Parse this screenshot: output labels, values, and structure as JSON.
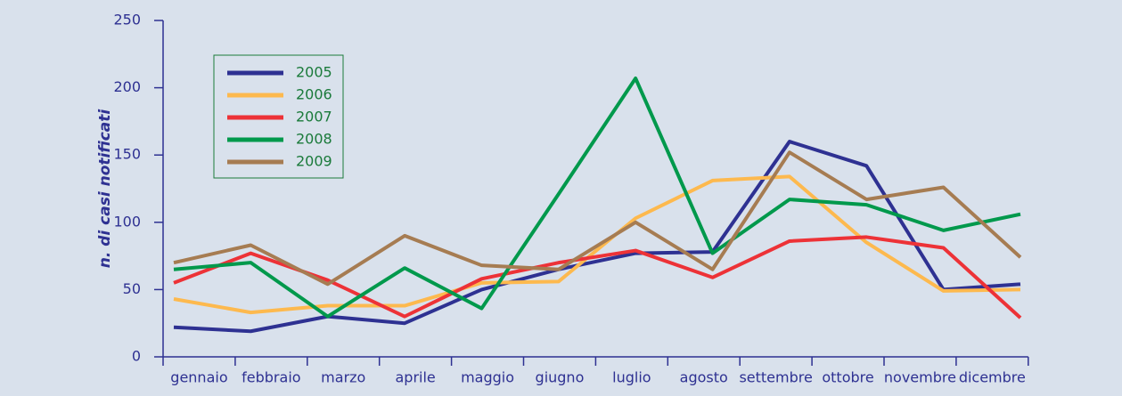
{
  "chart_data": {
    "type": "line",
    "y_label": "n. di casi notificati",
    "categories": [
      "gennaio",
      "febbraio",
      "marzo",
      "aprile",
      "maggio",
      "giugno",
      "luglio",
      "agosto",
      "settembre",
      "ottobre",
      "novembre",
      "dicembre"
    ],
    "series": [
      {
        "name": "2005",
        "color": "#2e3192",
        "values": [
          22,
          19,
          30,
          25,
          50,
          65,
          77,
          78,
          160,
          142,
          50,
          54
        ]
      },
      {
        "name": "2006",
        "color": "#fdb94e",
        "values": [
          43,
          33,
          38,
          38,
          55,
          56,
          103,
          131,
          134,
          85,
          49,
          50
        ]
      },
      {
        "name": "2007",
        "color": "#ed3237",
        "values": [
          55,
          77,
          57,
          30,
          58,
          70,
          79,
          59,
          86,
          89,
          81,
          29
        ]
      },
      {
        "name": "2008",
        "color": "#00994c",
        "values": [
          65,
          70,
          30,
          66,
          36,
          121,
          207,
          77,
          117,
          113,
          94,
          106
        ]
      },
      {
        "name": "2009",
        "color": "#a67c52",
        "values": [
          70,
          83,
          54,
          90,
          68,
          65,
          100,
          65,
          152,
          117,
          126,
          74
        ]
      }
    ],
    "ylim": [
      0,
      250
    ],
    "yticks": [
      0,
      50,
      100,
      150,
      200,
      250
    ],
    "legend": "upper left"
  }
}
